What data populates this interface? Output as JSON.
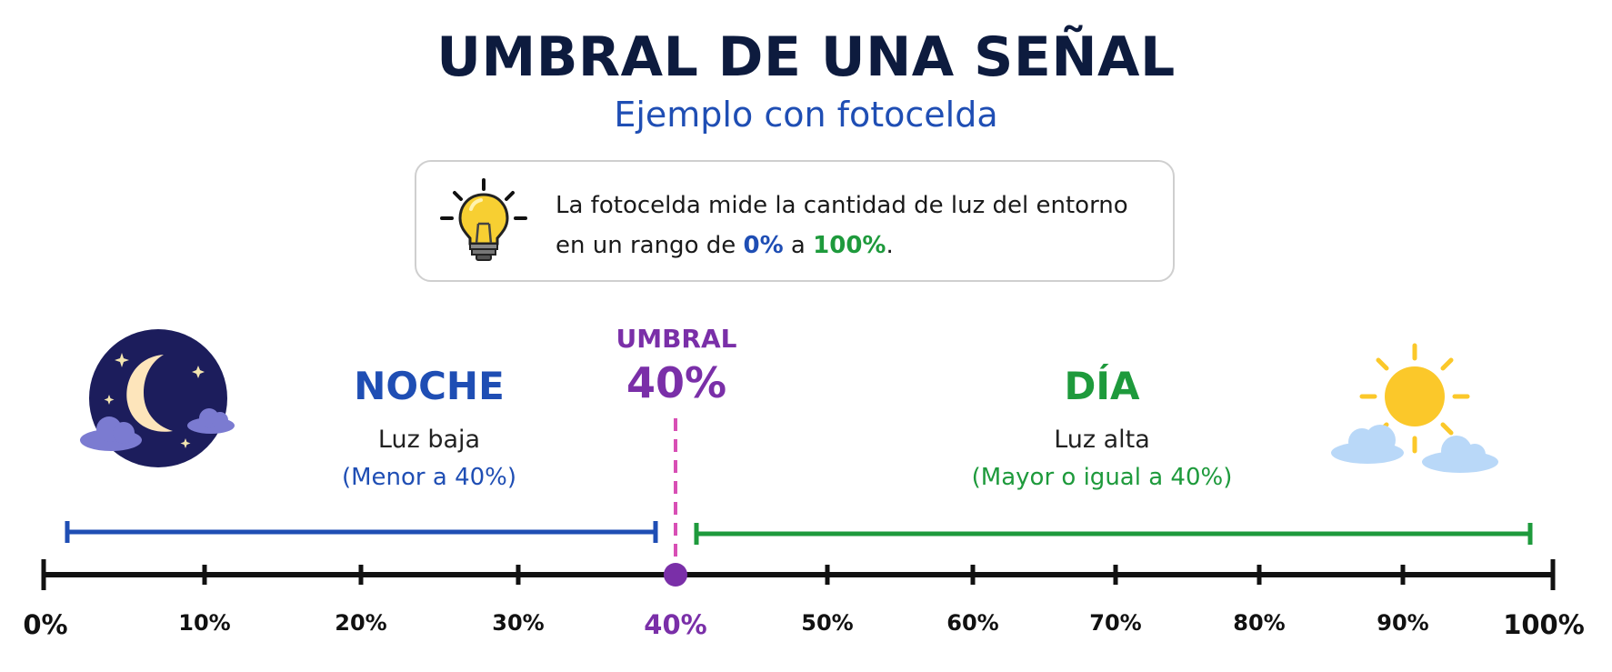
{
  "title": "UMBRAL DE UNA SEÑAL",
  "subtitle": "Ejemplo con fotocelda",
  "info": {
    "text_before": "La fotocelda mide la cantidad de luz del entorno en un rango de ",
    "min": "0%",
    "connector": " a ",
    "max": "100%",
    "period": ".",
    "icon": "lightbulb-icon"
  },
  "threshold": {
    "label": "UMBRAL",
    "value_text": "40%",
    "value": 40,
    "color": "#7a2fa8"
  },
  "night": {
    "title": "NOCHE",
    "subtitle": "Luz baja",
    "condition": "(Menor a 40%)",
    "color": "#1f4eb4",
    "range": [
      0,
      40
    ],
    "icon": "moon-icon"
  },
  "day": {
    "title": "DÍA",
    "subtitle": "Luz alta",
    "condition": "(Mayor o igual a 40%)",
    "color": "#1e9a3c",
    "range": [
      40,
      100
    ],
    "icon": "sun-icon"
  },
  "scale": {
    "min": 0,
    "max": 100,
    "ticks": [
      "0%",
      "10%",
      "20%",
      "30%",
      "40%",
      "50%",
      "60%",
      "70%",
      "80%",
      "90%",
      "100%"
    ]
  }
}
